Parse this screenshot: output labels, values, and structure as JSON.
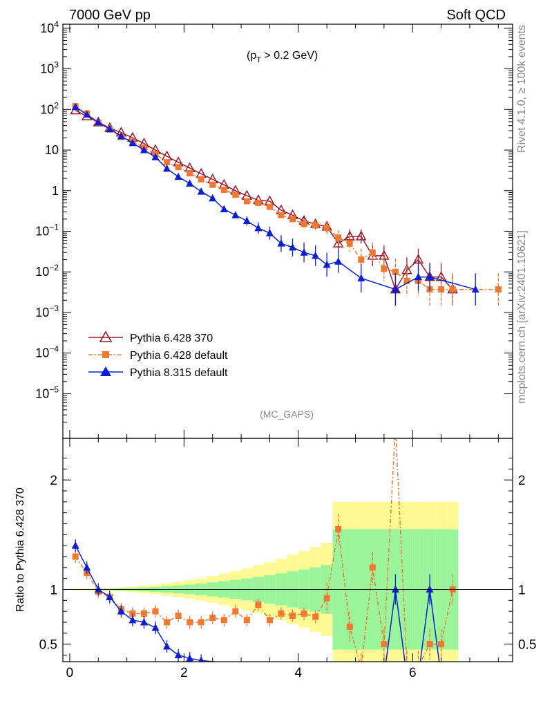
{
  "header": {
    "left": "7000 GeV pp",
    "right": "Soft QCD"
  },
  "side": {
    "top": "Rivet 4.1.0, ≥ 100k events",
    "bottom": "mcplots.cern.ch [arXiv:2401.10621]"
  },
  "cut_label": "(p",
  "cut_sub": "T",
  "cut_rest": " > 0.2 GeV)",
  "analysis_label": "(MC_GAPS)",
  "ratio_ylabel": "Ratio to Pythia 6.428 370",
  "chart_data": {
    "type": "line",
    "xlim": [
      -0.12,
      7.75
    ],
    "main": {
      "scale": "log",
      "ylim_exp": [
        -6.1,
        4.1
      ],
      "yticks": [
        {
          "exp": 4,
          "label": "10",
          "sup": "4"
        },
        {
          "exp": 3,
          "label": "10",
          "sup": "3"
        },
        {
          "exp": 2,
          "label": "10",
          "sup": "2"
        },
        {
          "exp": 1,
          "label": "10",
          "sup": ""
        },
        {
          "exp": 0,
          "label": "1",
          "sup": ""
        },
        {
          "exp": -1,
          "label": "10",
          "sup": "−1"
        },
        {
          "exp": -2,
          "label": "10",
          "sup": "−2"
        },
        {
          "exp": -3,
          "label": "10",
          "sup": "−3"
        },
        {
          "exp": -4,
          "label": "10",
          "sup": "−4"
        },
        {
          "exp": -5,
          "label": "10",
          "sup": "−5"
        }
      ]
    },
    "ratio": {
      "ylim": [
        0.34,
        2.38
      ],
      "yticks": [
        {
          "v": 0.5,
          "label": "0.5"
        },
        {
          "v": 1,
          "label": "1"
        },
        {
          "v": 2,
          "label": "2"
        }
      ]
    },
    "xticks": [
      {
        "v": 0,
        "label": "0"
      },
      {
        "v": 2,
        "label": "2"
      },
      {
        "v": 4,
        "label": "4"
      },
      {
        "v": 6,
        "label": "6"
      }
    ],
    "series": [
      {
        "name": "Pythia 6.428 370",
        "color": "#991a2e",
        "marker": "triangle-open",
        "x": [
          0.1,
          0.3,
          0.5,
          0.7,
          0.9,
          1.1,
          1.3,
          1.5,
          1.7,
          1.9,
          2.1,
          2.3,
          2.5,
          2.7,
          2.9,
          3.1,
          3.3,
          3.5,
          3.7,
          3.9,
          4.1,
          4.3,
          4.5,
          4.7,
          4.9,
          5.1,
          5.3,
          5.5,
          5.7,
          5.9,
          6.1,
          6.3,
          6.5,
          6.7
        ],
        "y": [
          95,
          68,
          48,
          35,
          27,
          20,
          14.5,
          10,
          7,
          5,
          3.6,
          2.6,
          1.9,
          1.4,
          1.0,
          0.75,
          0.58,
          0.55,
          0.33,
          0.25,
          0.18,
          0.15,
          0.13,
          0.05,
          0.075,
          0.075,
          0.025,
          0.025,
          0.0037,
          0.011,
          0.02,
          0.0075,
          0.0075,
          0.0037
        ]
      },
      {
        "name": "Pythia 6.428 default",
        "color": "#f07830",
        "marker": "square",
        "x": [
          0.1,
          0.3,
          0.5,
          0.7,
          0.9,
          1.1,
          1.3,
          1.5,
          1.7,
          1.9,
          2.1,
          2.3,
          2.5,
          2.7,
          2.9,
          3.1,
          3.3,
          3.5,
          3.7,
          3.9,
          4.1,
          4.3,
          4.5,
          4.7,
          4.9,
          5.1,
          5.3,
          5.5,
          5.7,
          5.9,
          6.1,
          6.3,
          6.5,
          6.7,
          7.5
        ],
        "y": [
          120,
          80,
          47,
          32,
          21,
          16,
          11.5,
          8,
          5,
          3.8,
          2.7,
          1.9,
          1.4,
          1.05,
          0.8,
          0.55,
          0.5,
          0.4,
          0.25,
          0.2,
          0.15,
          0.14,
          0.12,
          0.07,
          0.05,
          0.02,
          0.03,
          0.012,
          0.01,
          0.006,
          0.006,
          0.0037,
          0.0037,
          0.0037,
          0.0037
        ],
        "ratio_x": [
          0.1,
          0.3,
          0.5,
          0.7,
          0.9,
          1.1,
          1.3,
          1.5,
          1.7,
          1.9,
          2.1,
          2.3,
          2.5,
          2.7,
          2.9,
          3.1,
          3.3,
          3.5,
          3.7,
          3.9,
          4.1,
          4.3,
          4.5,
          4.7,
          4.9,
          5.1,
          5.3,
          5.5,
          5.7,
          5.9,
          6.1,
          6.3,
          6.5,
          6.7
        ],
        "ratio_y": [
          1.3,
          1.15,
          0.98,
          0.93,
          0.82,
          0.78,
          0.78,
          0.8,
          0.7,
          0.76,
          0.7,
          0.7,
          0.74,
          0.72,
          0.8,
          0.72,
          0.86,
          0.72,
          0.78,
          0.76,
          0.78,
          0.75,
          0.92,
          1.55,
          0.66,
          0.28,
          1.2,
          0.5,
          2.5,
          0.3,
          0.3,
          0.5,
          0.5,
          1.0
        ]
      },
      {
        "name": "Pythia 8.315 default",
        "color": "#0a1ed2",
        "marker": "triangle",
        "x": [
          0.1,
          0.3,
          0.5,
          0.7,
          0.9,
          1.1,
          1.3,
          1.5,
          1.7,
          1.9,
          2.1,
          2.3,
          2.5,
          2.7,
          2.9,
          3.1,
          3.3,
          3.5,
          3.7,
          3.9,
          4.1,
          4.3,
          4.5,
          4.7,
          5.1,
          5.7,
          6.1,
          6.3,
          7.1
        ],
        "y": [
          115,
          75,
          48,
          33,
          22,
          15,
          10,
          6.7,
          3.5,
          2.2,
          1.5,
          0.95,
          0.65,
          0.35,
          0.25,
          0.18,
          0.12,
          0.09,
          0.05,
          0.04,
          0.03,
          0.025,
          0.015,
          0.018,
          0.007,
          0.0037,
          0.0075,
          0.0075,
          0.0037
        ],
        "ratio_x": [
          0.1,
          0.3,
          0.5,
          0.7,
          0.9,
          1.1,
          1.3,
          1.5,
          1.7,
          1.9,
          2.1,
          2.3,
          5.5,
          5.7,
          5.9,
          6.1,
          6.3,
          6.5
        ],
        "ratio_y": [
          1.4,
          1.2,
          1.0,
          0.93,
          0.8,
          0.72,
          0.7,
          0.65,
          0.48,
          0.4,
          0.37,
          0.35,
          0.2,
          1.0,
          0.2,
          0.2,
          1.0,
          0.2
        ]
      }
    ]
  }
}
